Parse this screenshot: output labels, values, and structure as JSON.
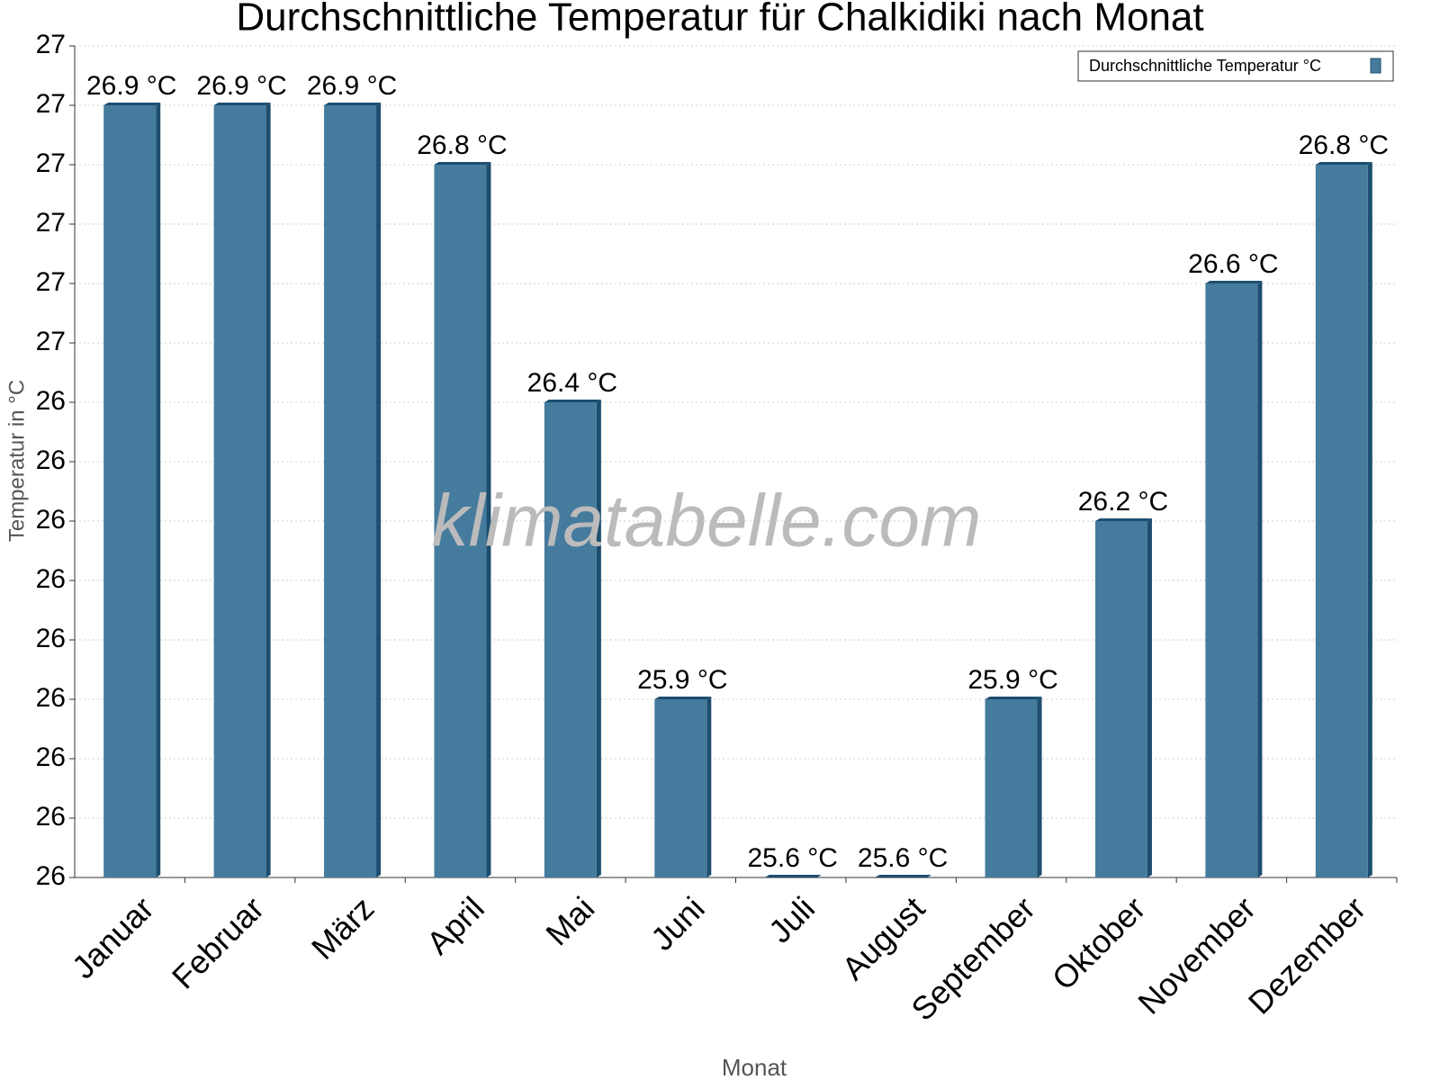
{
  "chart_data": {
    "type": "bar",
    "title": "Durchschnittliche Temperatur für Chalkidiki nach Monat",
    "xlabel": "Monat",
    "ylabel": "Temperatur in °C",
    "watermark": "klimatabelle.com",
    "categories": [
      "Januar",
      "Februar",
      "März",
      "April",
      "Mai",
      "Juni",
      "Juli",
      "August",
      "September",
      "Oktober",
      "November",
      "Dezember"
    ],
    "series": [
      {
        "name": "Durchschnittliche Temperatur °C",
        "color": "#457b9d",
        "side_color": "#1d4e6f",
        "values": [
          26.9,
          26.9,
          26.9,
          26.8,
          26.4,
          25.9,
          25.6,
          25.6,
          25.9,
          26.2,
          26.6,
          26.8
        ],
        "value_labels": [
          "26.9 °C",
          "26.9 °C",
          "26.9 °C",
          "26.8 °C",
          "26.4 °C",
          "25.9 °C",
          "25.6 °C",
          "25.6 °C",
          "25.9 °C",
          "26.2 °C",
          "26.6 °C",
          "26.8 °C"
        ]
      }
    ],
    "ylim": [
      25.6,
      27.0
    ],
    "yticks": [
      {
        "value": 25.6,
        "label": "26"
      },
      {
        "value": 25.7,
        "label": "26"
      },
      {
        "value": 25.8,
        "label": "26"
      },
      {
        "value": 25.9,
        "label": "26"
      },
      26,
      {
        "value": 26.1,
        "label": "26"
      },
      {
        "value": 26.2,
        "label": "26"
      },
      {
        "value": 26.3,
        "label": "26"
      },
      {
        "value": 26.4,
        "label": "26"
      },
      {
        "value": 26.5,
        "label": "27"
      },
      {
        "value": 26.6,
        "label": "27"
      },
      {
        "value": 26.7,
        "label": "27"
      },
      {
        "value": 26.8,
        "label": "27"
      },
      {
        "value": 26.9,
        "label": "27"
      },
      27
    ],
    "grid": true,
    "legend": "upper right"
  }
}
